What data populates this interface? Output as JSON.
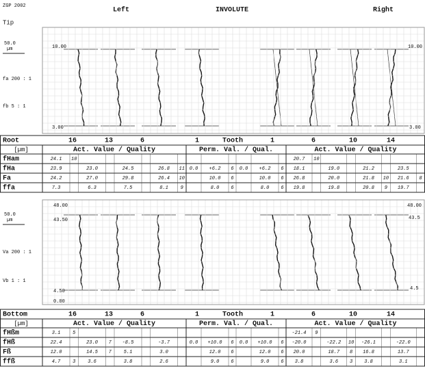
{
  "header": {
    "id": "ZGP 2002",
    "tip": "Tip",
    "left": "Left",
    "title": "INVOLUTE",
    "right": "Right"
  },
  "profile_plot": {
    "scale_value": "50.0",
    "scale_unit": "µm",
    "mag_v": "fa 200 : 1",
    "mag_h": "fb 5 : 1",
    "top_left": "10.00",
    "top_right": "10.00",
    "bottom_left": "3.00",
    "bottom_right": "3.00"
  },
  "profile_table": {
    "header": [
      "Root",
      "16",
      "13",
      "6",
      "1",
      "Tooth",
      "1",
      "6",
      "10",
      "14"
    ],
    "subheader": [
      "[µm]",
      "Act. Value / Quality",
      "Perm. Val. / Qual.",
      "Act. Value / Quality"
    ],
    "rows": [
      [
        "fHam",
        "24.1",
        "10",
        null,
        null,
        null,
        null,
        null,
        null,
        null,
        null,
        null,
        null,
        null,
        null,
        "20.7",
        "10",
        null,
        null,
        null,
        null,
        null,
        null
      ],
      [
        "fHa",
        "23.9",
        null,
        "23.0",
        null,
        "24.5",
        null,
        "26.8",
        "11",
        "0.0",
        "+6.2",
        "6",
        "0.0",
        "+6.2",
        "6",
        "18.1",
        null,
        "19.0",
        null,
        "21.2",
        null,
        "23.5",
        null
      ],
      [
        "Fa",
        "24.2",
        null,
        "27.0",
        null,
        "29.8",
        null,
        "26.4",
        "10",
        null,
        "10.0",
        "6",
        null,
        "10.0",
        "6",
        "26.8",
        null,
        "20.0",
        null,
        "21.8",
        "10",
        "21.6",
        "8"
      ],
      [
        "ffa",
        "7.3",
        null,
        "6.3",
        null,
        "7.5",
        null,
        "8.1",
        "9",
        null,
        "8.0",
        "6",
        null,
        "8.0",
        "6",
        "19.8",
        null,
        "19.8",
        null,
        "20.8",
        "9",
        "19.7",
        null
      ]
    ]
  },
  "lead_plot": {
    "scale_value": "50.0",
    "scale_unit": "µm",
    "mag_v": "Va 200 : 1",
    "mag_h": "Vb 1 : 1",
    "top_left": "48.00",
    "upper_left": "43.50",
    "lower_left": "4.50",
    "bottom_left": "0.00",
    "top_right": "48.00",
    "upper_right": "43.5",
    "lower_right": "4.5"
  },
  "lead_table": {
    "header": [
      "Bottom",
      "16",
      "13",
      "6",
      "1",
      "Tooth",
      "1",
      "6",
      "10",
      "14"
    ],
    "subheader": [
      "[µm]",
      "Act. Value / Quality",
      "Perm. Val. / Qual.",
      "Act. Value / Quality"
    ],
    "rows": [
      [
        "fHßm",
        "3.1",
        "5",
        null,
        null,
        null,
        null,
        null,
        null,
        null,
        null,
        null,
        null,
        null,
        null,
        "-21.4",
        "9",
        null,
        null,
        null,
        null,
        null,
        null
      ],
      [
        "fHß",
        "22.4",
        null,
        "23.0",
        "7",
        "-8.5",
        null,
        "-3.7",
        null,
        "0.0",
        "+10.0",
        "6",
        "0.0",
        "+10.0",
        "6",
        "-20.0",
        null,
        "-22.2",
        "10",
        "-26.1",
        null,
        "-22.0",
        null
      ],
      [
        "Fß",
        "12.0",
        null,
        "14.5",
        "7",
        "5.1",
        null,
        "3.0",
        null,
        null,
        "12.0",
        "6",
        null,
        "12.0",
        "6",
        "20.0",
        null,
        "18.7",
        "8",
        "16.8",
        null,
        "13.7",
        null
      ],
      [
        "ffß",
        "4.7",
        "3",
        "3.6",
        null,
        "3.8",
        null,
        "2.6",
        null,
        null,
        "9.0",
        "6",
        null,
        "9.0",
        "6",
        "3.8",
        null,
        "3.6",
        "3",
        "3.8",
        null,
        "3.1",
        null
      ]
    ]
  }
}
